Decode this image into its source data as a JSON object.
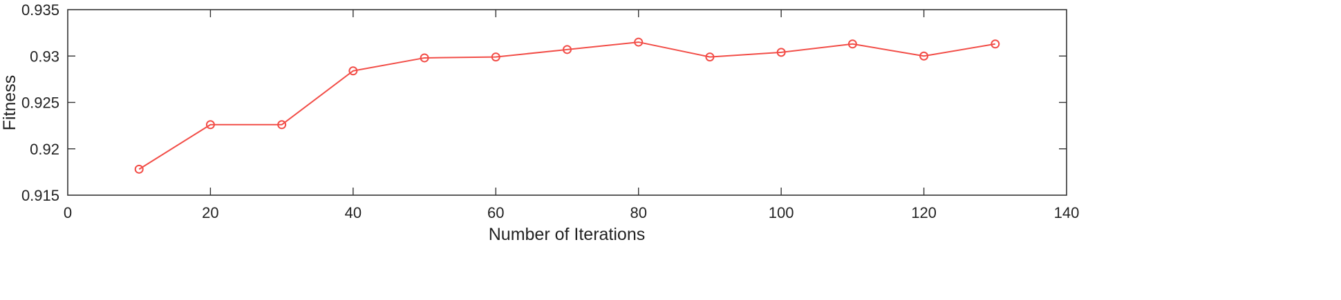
{
  "chart_data": {
    "type": "line",
    "title": "",
    "xlabel": "Number of Iterations",
    "ylabel": "Fitness",
    "xlim": [
      0,
      140
    ],
    "ylim": [
      0.915,
      0.935
    ],
    "xticks": [
      0,
      20,
      40,
      60,
      80,
      100,
      120,
      140
    ],
    "xtick_labels": [
      "0",
      "20",
      "40",
      "60",
      "80",
      "100",
      "120",
      "140"
    ],
    "yticks": [
      0.915,
      0.92,
      0.925,
      0.93,
      0.935
    ],
    "ytick_labels": [
      "0.915",
      "0.92",
      "0.925",
      "0.93",
      "0.935"
    ],
    "grid": false,
    "series": [
      {
        "color": "#f24d47",
        "marker": "circle",
        "x": [
          10,
          20,
          30,
          40,
          50,
          60,
          70,
          80,
          90,
          100,
          110,
          120,
          130
        ],
        "y": [
          0.9178,
          0.9226,
          0.9226,
          0.9284,
          0.9298,
          0.9299,
          0.9307,
          0.9315,
          0.9299,
          0.9304,
          0.9313,
          0.93,
          0.9313
        ]
      }
    ]
  }
}
